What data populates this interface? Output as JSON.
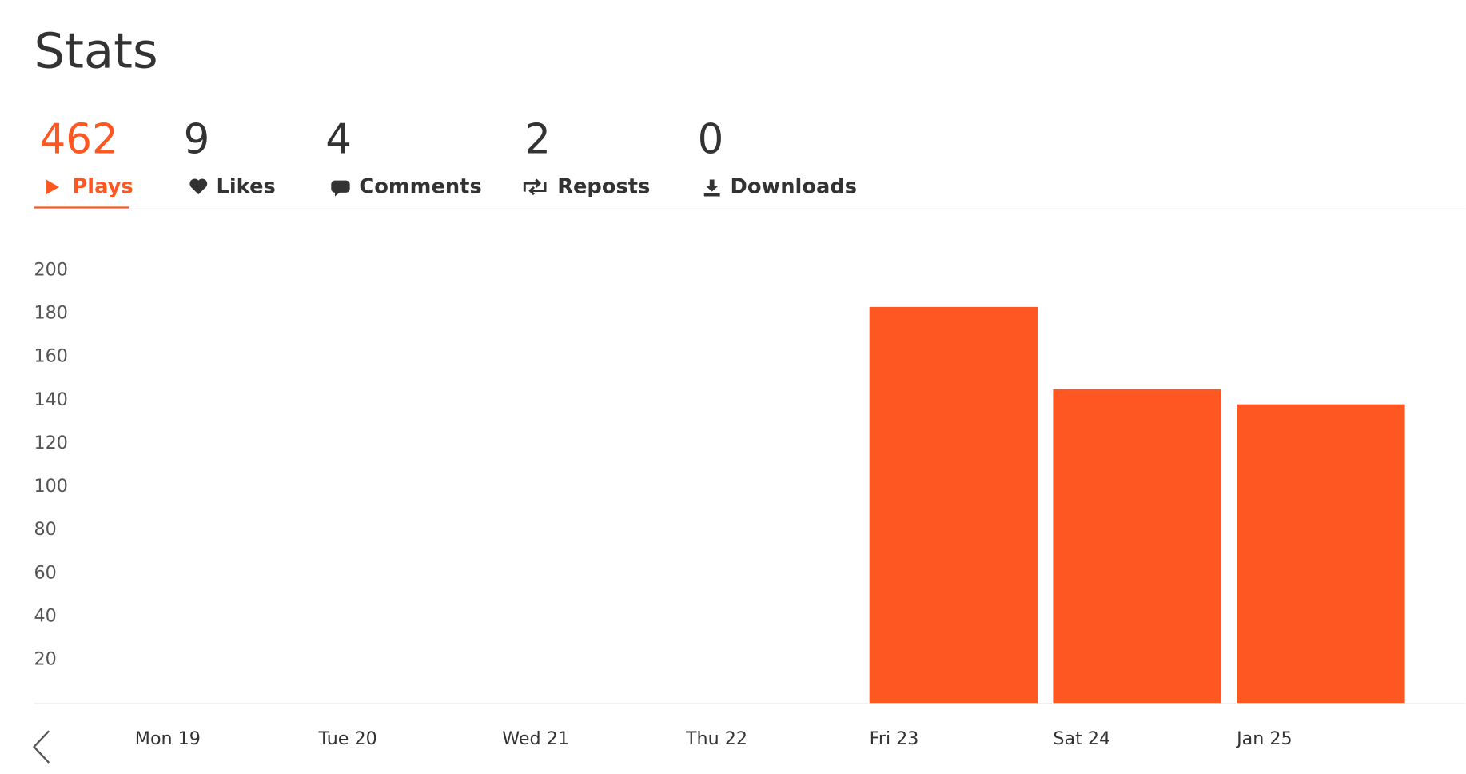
{
  "header": {
    "title": "Stats"
  },
  "tabs": [
    {
      "count": 462,
      "label": "Plays"
    },
    {
      "count": 9,
      "label": "Likes"
    },
    {
      "count": 4,
      "label": "Comments"
    },
    {
      "count": 2,
      "label": "Reposts"
    },
    {
      "count": 0,
      "label": "Downloads"
    }
  ],
  "chart_data": {
    "type": "bar",
    "categories": [
      "Mon 19",
      "Tue 20",
      "Wed 21",
      "Thu 22",
      "Fri 23",
      "Sat 24",
      "Jan 25"
    ],
    "values": [
      0,
      0,
      0,
      0,
      183,
      145,
      138
    ],
    "color": "#ff5722",
    "ylim": [
      0,
      200
    ],
    "yticks": [
      20,
      40,
      60,
      80,
      100,
      120,
      140,
      160,
      180,
      200
    ]
  }
}
